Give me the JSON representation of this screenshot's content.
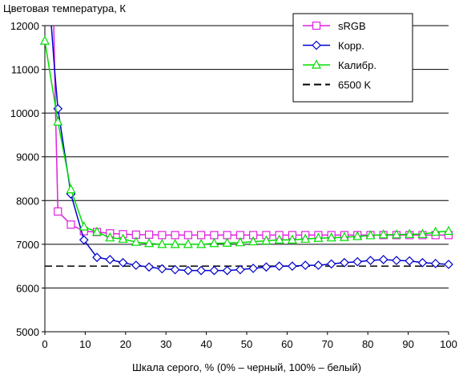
{
  "chart_data": {
    "type": "line",
    "title": "",
    "ylabel": "Цветовая температура, К",
    "xlabel": "Шкала серого, % (0% – черный, 100% – белый)",
    "xlim": [
      0,
      100
    ],
    "ylim": [
      5000,
      12000
    ],
    "xticks": [
      "0",
      "10",
      "20",
      "30",
      "40",
      "50",
      "60",
      "70",
      "80",
      "90",
      "100"
    ],
    "yticks": [
      "5000",
      "6000",
      "7000",
      "8000",
      "9000",
      "10000",
      "11000",
      "12000"
    ],
    "grid": "horizontal",
    "legend_position": "top-right",
    "x": [
      0,
      3.23,
      6.45,
      9.68,
      12.9,
      16.13,
      19.35,
      22.58,
      25.81,
      29.03,
      32.26,
      35.48,
      38.71,
      41.94,
      45.16,
      48.39,
      51.61,
      54.84,
      58.06,
      61.29,
      64.52,
      67.74,
      70.97,
      74.19,
      77.42,
      80.65,
      83.87,
      87.1,
      90.32,
      93.55,
      96.77,
      100
    ],
    "series": [
      {
        "name": "sRGB",
        "color": "#e020e0",
        "marker": "square",
        "values": [
          null,
          7750,
          7450,
          7300,
          7280,
          7250,
          7230,
          7220,
          7220,
          7210,
          7210,
          7210,
          7210,
          7210,
          7210,
          7210,
          7210,
          7210,
          7210,
          7210,
          7210,
          7210,
          7210,
          7210,
          7210,
          7210,
          7210,
          7210,
          7210,
          7210,
          7210,
          7210
        ]
      },
      {
        "name": "Корр.",
        "color": "#0000cc",
        "marker": "diamond",
        "values": [
          null,
          10100,
          8150,
          7100,
          6700,
          6650,
          6580,
          6520,
          6480,
          6440,
          6420,
          6400,
          6400,
          6400,
          6400,
          6420,
          6450,
          6480,
          6500,
          6500,
          6520,
          6520,
          6550,
          6580,
          6600,
          6630,
          6650,
          6630,
          6620,
          6580,
          6560,
          6540
        ]
      },
      {
        "name": "Калибр.",
        "color": "#00dd00",
        "marker": "triangle",
        "values": [
          11650,
          9800,
          8250,
          7400,
          7280,
          7150,
          7120,
          7050,
          7020,
          7000,
          7000,
          7000,
          7000,
          7020,
          7030,
          7040,
          7060,
          7080,
          7100,
          7100,
          7120,
          7140,
          7150,
          7160,
          7180,
          7200,
          7220,
          7220,
          7230,
          7230,
          7280,
          7300
        ]
      },
      {
        "name": "6500 K",
        "color": "#000000",
        "marker": "none",
        "dashed": true,
        "values": [
          6500,
          6500,
          6500,
          6500,
          6500,
          6500,
          6500,
          6500,
          6500,
          6500,
          6500,
          6500,
          6500,
          6500,
          6500,
          6500,
          6500,
          6500,
          6500,
          6500,
          6500,
          6500,
          6500,
          6500,
          6500,
          6500,
          6500,
          6500,
          6500,
          6500,
          6500,
          6500
        ]
      }
    ],
    "steep_start": {
      "sRGB": [
        [
          2.2,
          12000
        ],
        [
          2.6,
          10200
        ],
        [
          3.23,
          7750
        ]
      ],
      "Корр.": [
        [
          1.6,
          12000
        ],
        [
          2.4,
          11000
        ],
        [
          3.23,
          10100
        ]
      ]
    }
  }
}
